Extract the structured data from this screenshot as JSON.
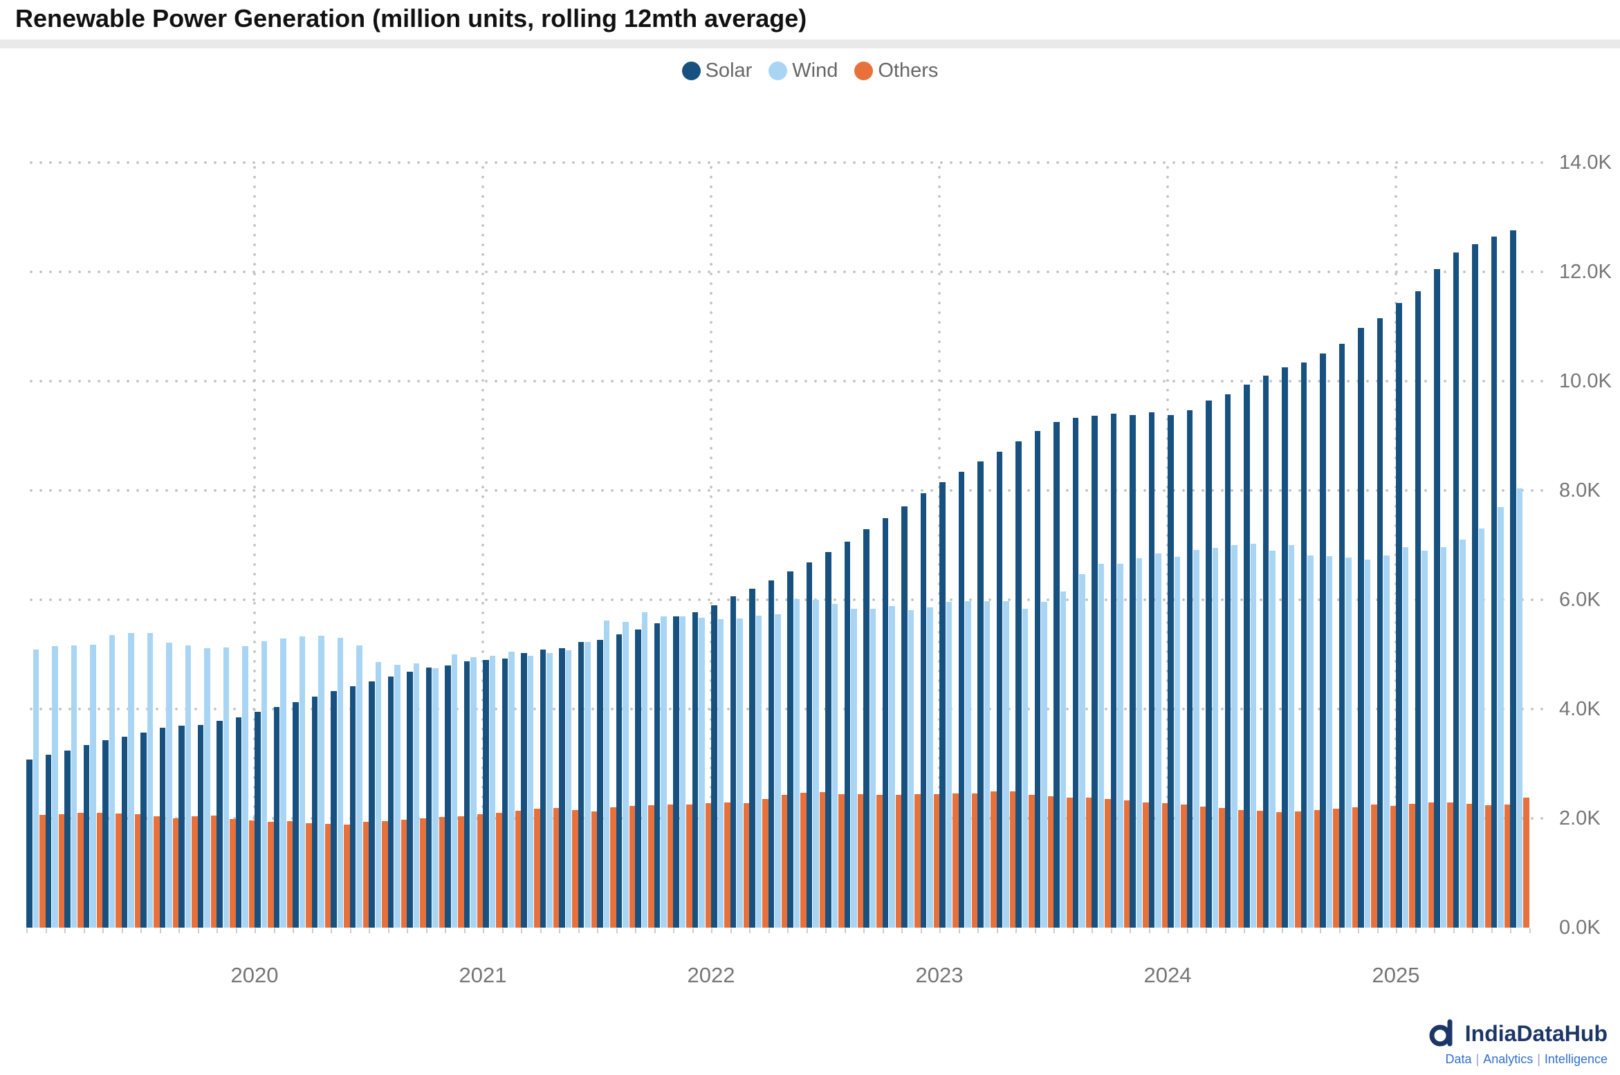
{
  "title": "Renewable Power Generation (million units, rolling 12mth average)",
  "legend": [
    {
      "label": "Solar",
      "color": "#175180"
    },
    {
      "label": "Wind",
      "color": "#A9D5F5"
    },
    {
      "label": "Others",
      "color": "#E8713B"
    }
  ],
  "y_axis": {
    "labels": [
      "0.0K",
      "2.0K",
      "4.0K",
      "6.0K",
      "8.0K",
      "10.0K",
      "12.0K",
      "14.0K"
    ],
    "min": 0,
    "max": 14000,
    "step": 2000
  },
  "x_axis": {
    "year_labels": [
      "2020",
      "2021",
      "2022",
      "2023",
      "2024",
      "2025"
    ]
  },
  "footer": {
    "brand": "IndiaDataHub",
    "tagline_parts": [
      "Data",
      "Analytics",
      "Intelligence"
    ]
  },
  "chart_data": {
    "type": "bar",
    "title": "Renewable Power Generation (million units, rolling 12mth average)",
    "unit": "million units",
    "months_start": "2019-01",
    "months_count": 79,
    "ylim": [
      0,
      14000
    ],
    "grid": "dotted",
    "legend_position": "top-center",
    "series": [
      {
        "name": "Solar",
        "color": "#175180",
        "values": [
          3076,
          3170,
          3245,
          3340,
          3425,
          3500,
          3575,
          3655,
          3690,
          3715,
          3785,
          3850,
          3945,
          4040,
          4130,
          4230,
          4330,
          4420,
          4510,
          4600,
          4680,
          4755,
          4800,
          4875,
          4905,
          4930,
          5030,
          5090,
          5120,
          5230,
          5270,
          5370,
          5460,
          5575,
          5690,
          5770,
          5900,
          6060,
          6200,
          6350,
          6520,
          6680,
          6870,
          7060,
          7285,
          7490,
          7710,
          7945,
          8155,
          8345,
          8530,
          8705,
          8895,
          9085,
          9250,
          9330,
          9370,
          9405,
          9385,
          9425,
          9385,
          9470,
          9640,
          9765,
          9935,
          10105,
          10255,
          10340,
          10510,
          10680,
          10980,
          11150,
          11425,
          11640,
          12045,
          12360,
          12510,
          12640,
          12765
        ]
      },
      {
        "name": "Wind",
        "color": "#A9D5F5",
        "values": [
          5090,
          5150,
          5160,
          5180,
          5355,
          5390,
          5390,
          5215,
          5165,
          5115,
          5125,
          5150,
          5240,
          5290,
          5330,
          5345,
          5305,
          5160,
          4865,
          4805,
          4835,
          4750,
          5000,
          4955,
          4975,
          5045,
          4980,
          5025,
          5070,
          5225,
          5615,
          5590,
          5770,
          5695,
          5690,
          5675,
          5645,
          5660,
          5710,
          5730,
          6010,
          5995,
          5930,
          5835,
          5840,
          5890,
          5810,
          5860,
          5960,
          5970,
          5970,
          5980,
          5840,
          5960,
          6150,
          6470,
          6660,
          6660,
          6765,
          6850,
          6790,
          6915,
          6955,
          7000,
          7020,
          6895,
          7000,
          6810,
          6800,
          6770,
          6735,
          6810,
          6960,
          6895,
          6965,
          7095,
          7305,
          7695,
          8035
        ]
      },
      {
        "name": "Others",
        "color": "#E8713B",
        "values": [
          2065,
          2075,
          2095,
          2095,
          2085,
          2075,
          2035,
          2000,
          2035,
          2050,
          1990,
          1965,
          1935,
          1950,
          1915,
          1905,
          1880,
          1935,
          1950,
          1980,
          2000,
          2020,
          2040,
          2075,
          2105,
          2135,
          2175,
          2185,
          2155,
          2130,
          2200,
          2225,
          2240,
          2255,
          2255,
          2275,
          2290,
          2275,
          2350,
          2425,
          2470,
          2485,
          2440,
          2440,
          2430,
          2430,
          2440,
          2445,
          2460,
          2450,
          2495,
          2500,
          2425,
          2410,
          2380,
          2385,
          2355,
          2325,
          2290,
          2275,
          2255,
          2210,
          2185,
          2155,
          2135,
          2120,
          2130,
          2150,
          2175,
          2200,
          2255,
          2225,
          2265,
          2285,
          2290,
          2270,
          2240,
          2255,
          2380
        ]
      }
    ]
  }
}
